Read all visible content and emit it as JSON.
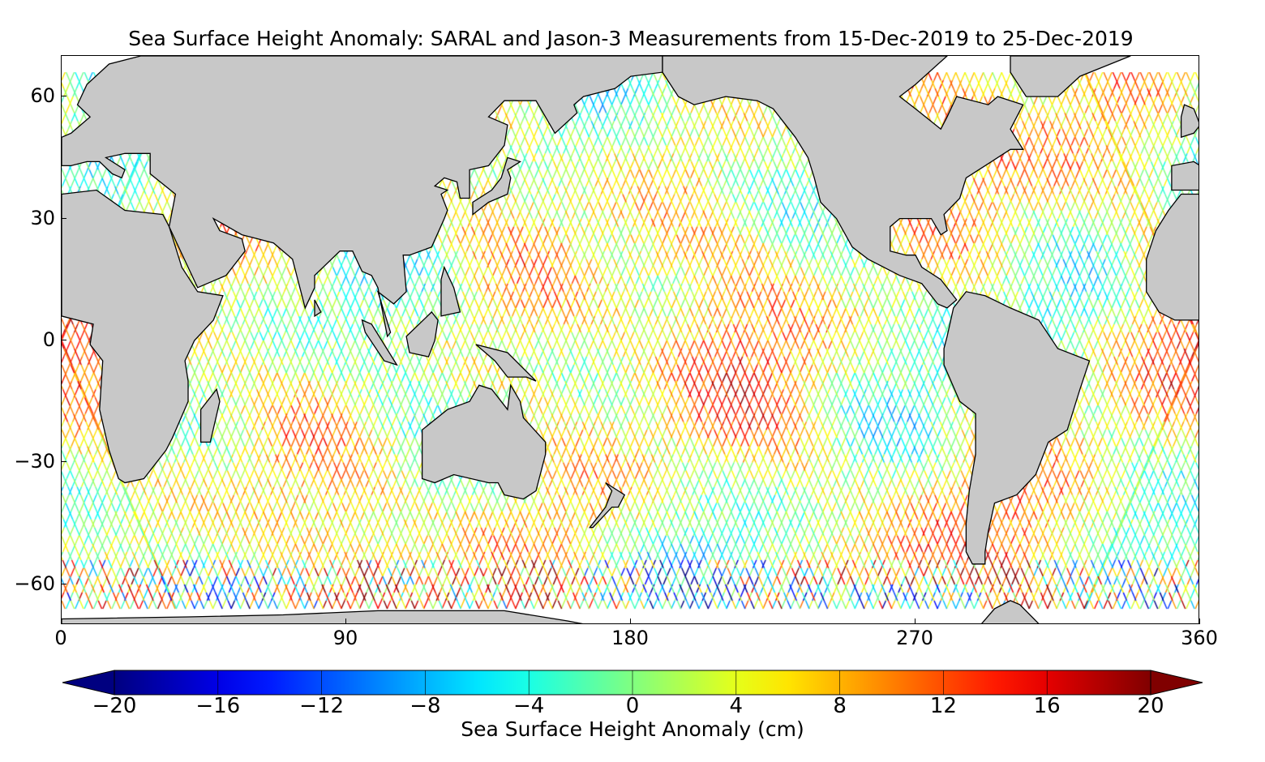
{
  "chart_data": {
    "type": "heatmap",
    "title": "Sea Surface Height Anomaly: SARAL and Jason-3 Measurements from 15-Dec-2019 to 25-Dec-2019",
    "projection": "equirectangular",
    "xlim": [
      0,
      360
    ],
    "ylim": [
      -70,
      70
    ],
    "x_ticks": [
      "0",
      "90",
      "180",
      "270",
      "360"
    ],
    "y_ticks": [
      {
        "value": 60,
        "label": "60"
      },
      {
        "value": 30,
        "label": "30"
      },
      {
        "value": 0,
        "label": "0"
      },
      {
        "value": -30,
        "label": "−30"
      },
      {
        "value": -60,
        "label": "−60"
      }
    ],
    "land_color": "#c8c8c8",
    "colorbar": {
      "label": "Sea Surface Height Anomaly (cm)",
      "colormap": "jet",
      "range": [
        -20,
        20
      ],
      "extend": "both",
      "ticks": [
        "−20",
        "−16",
        "−12",
        "−8",
        "−4",
        "0",
        "4",
        "8",
        "12",
        "16",
        "20"
      ]
    }
  }
}
